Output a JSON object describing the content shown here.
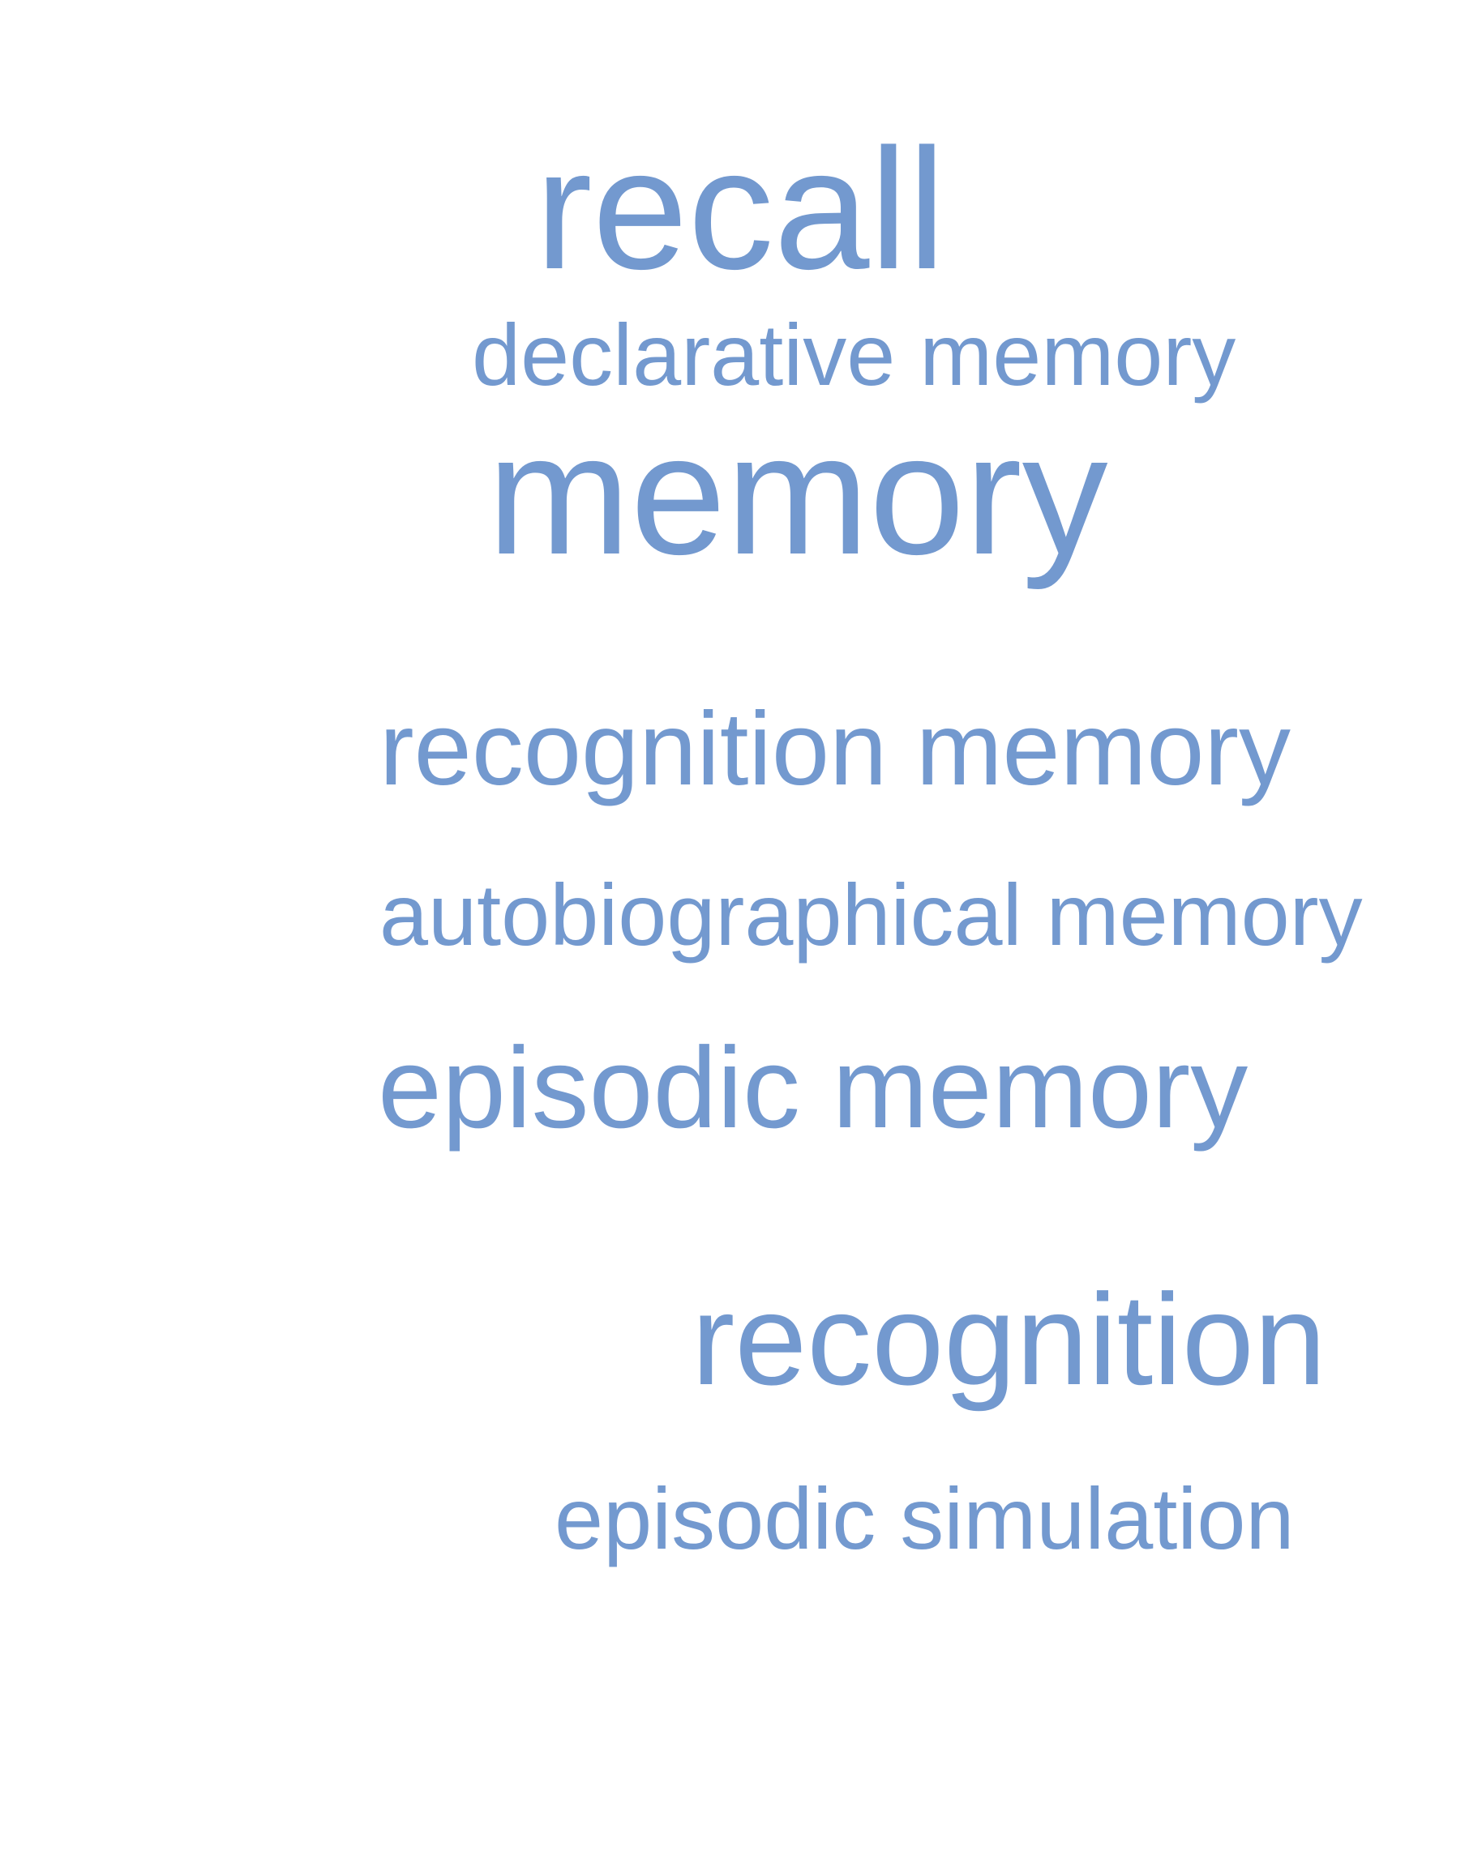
{
  "color": "#7399CF",
  "terms": [
    "recall",
    "declarative memory",
    "memory",
    "recognition memory",
    "autobiographical memory",
    "episodic memory",
    "recognition",
    "episodic simulation"
  ]
}
